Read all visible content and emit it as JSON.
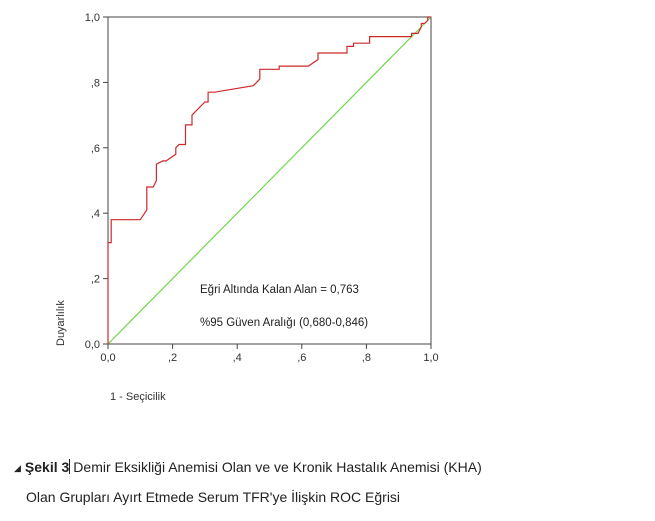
{
  "chart_data": {
    "type": "line",
    "xlabel": "1 - Seçicilik",
    "ylabel": "Duyarlılık",
    "xlim": [
      0,
      1
    ],
    "ylim": [
      0,
      1
    ],
    "xticks": [
      "0,0",
      ",2",
      ",4",
      ",6",
      ",8",
      "1,0"
    ],
    "yticks": [
      "0,0",
      ",2",
      ",4",
      ",6",
      ",8",
      "1,0"
    ],
    "grid": false,
    "series": [
      {
        "color": "#cc2a2a",
        "x": [
          0,
          0,
          0.01,
          0.01,
          0.1,
          0.12,
          0.12,
          0.14,
          0.15,
          0.15,
          0.17,
          0.18,
          0.21,
          0.21,
          0.22,
          0.24,
          0.24,
          0.26,
          0.26,
          0.28,
          0.3,
          0.31,
          0.31,
          0.33,
          0.33,
          0.45,
          0.47,
          0.47,
          0.53,
          0.53,
          0.62,
          0.65,
          0.65,
          0.74,
          0.74,
          0.76,
          0.76,
          0.81,
          0.81,
          0.94,
          0.94,
          0.96,
          0.97,
          0.97,
          0.98,
          0.99,
          0.99,
          1.0
        ],
        "y": [
          0,
          0.31,
          0.31,
          0.38,
          0.38,
          0.41,
          0.48,
          0.48,
          0.5,
          0.55,
          0.56,
          0.56,
          0.58,
          0.6,
          0.61,
          0.61,
          0.67,
          0.67,
          0.7,
          0.72,
          0.74,
          0.74,
          0.77,
          0.77,
          0.77,
          0.79,
          0.81,
          0.84,
          0.84,
          0.85,
          0.85,
          0.87,
          0.89,
          0.89,
          0.91,
          0.91,
          0.92,
          0.92,
          0.94,
          0.94,
          0.95,
          0.95,
          0.97,
          0.98,
          0.98,
          0.99,
          1.0,
          1.0
        ]
      },
      {
        "color": "#6dd94a",
        "x": [
          0,
          1
        ],
        "y": [
          0,
          1
        ]
      }
    ],
    "annotations": [
      "Eğri Altında Kalan Alan = 0,763",
      "%95 Güven Aralığı (0,680-0,846)"
    ]
  },
  "caption": {
    "label": "Şekil 3",
    "line1": "Demir Eksikliği Anemisi Olan ve ve Kronik Hastalık Anemisi (KHA)",
    "line2": "Olan Grupları Ayırt Etmede Serum TFR'ye İlişkin ROC Eğrisi"
  }
}
